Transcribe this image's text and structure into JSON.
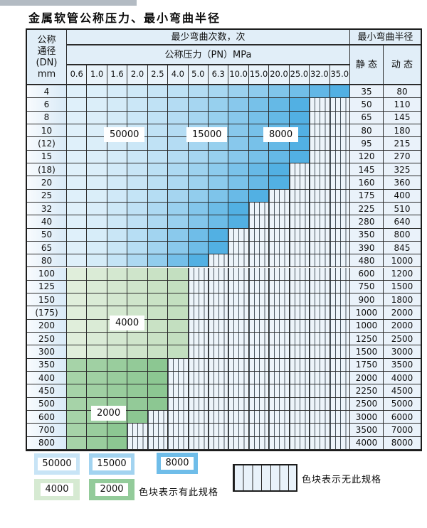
{
  "title": "金属软管公称压力、最小弯曲半径",
  "table": {
    "header": {
      "dn_lines": [
        "公称",
        "通径",
        "(DN)",
        "mm"
      ],
      "min_bend_cycles": "最少弯曲次数，次",
      "nominal_pressure": "公称压力（PN）MPa",
      "min_bend_radius": "最小弯曲半径",
      "static_label": "静 态",
      "dynamic_label": "动 态",
      "pressure_columns": [
        "0.6",
        "1.0",
        "1.6",
        "2.0",
        "2.5",
        "4.0",
        "5.0",
        "6.3",
        "10.0",
        "15.0",
        "20.0",
        "25.0",
        "32.0",
        "35.0"
      ]
    },
    "rows": [
      {
        "dn": "4",
        "colored_columns": 14,
        "zone": "blue",
        "static": "35",
        "dynamic": "80"
      },
      {
        "dn": "6",
        "colored_columns": 12,
        "zone": "blue",
        "static": "50",
        "dynamic": "110"
      },
      {
        "dn": "8",
        "colored_columns": 12,
        "zone": "blue",
        "static": "65",
        "dynamic": "145"
      },
      {
        "dn": "10",
        "colored_columns": 12,
        "zone": "blue",
        "static": "80",
        "dynamic": "180"
      },
      {
        "dn": "(12)",
        "colored_columns": 12,
        "zone": "blue",
        "static": "95",
        "dynamic": "215"
      },
      {
        "dn": "15",
        "colored_columns": 12,
        "zone": "blue",
        "static": "120",
        "dynamic": "270"
      },
      {
        "dn": "(18)",
        "colored_columns": 11,
        "zone": "blue",
        "static": "145",
        "dynamic": "325"
      },
      {
        "dn": "20",
        "colored_columns": 11,
        "zone": "blue",
        "static": "160",
        "dynamic": "360"
      },
      {
        "dn": "25",
        "colored_columns": 10,
        "zone": "blue",
        "static": "175",
        "dynamic": "400"
      },
      {
        "dn": "32",
        "colored_columns": 9,
        "zone": "blue",
        "static": "225",
        "dynamic": "510"
      },
      {
        "dn": "40",
        "colored_columns": 9,
        "zone": "blue",
        "static": "280",
        "dynamic": "640"
      },
      {
        "dn": "50",
        "colored_columns": 8,
        "zone": "blue",
        "static": "350",
        "dynamic": "800"
      },
      {
        "dn": "65",
        "colored_columns": 8,
        "zone": "blue",
        "static": "390",
        "dynamic": "845"
      },
      {
        "dn": "80",
        "colored_columns": 7,
        "zone": "blue",
        "static": "480",
        "dynamic": "1000"
      },
      {
        "dn": "100",
        "colored_columns": 6,
        "zone": "green_light",
        "static": "600",
        "dynamic": "1200"
      },
      {
        "dn": "125",
        "colored_columns": 6,
        "zone": "green_light",
        "static": "750",
        "dynamic": "1500"
      },
      {
        "dn": "150",
        "colored_columns": 6,
        "zone": "green_light",
        "static": "900",
        "dynamic": "1800"
      },
      {
        "dn": "(175)",
        "colored_columns": 6,
        "zone": "green_light",
        "static": "1000",
        "dynamic": "2000"
      },
      {
        "dn": "200",
        "colored_columns": 6,
        "zone": "green_light",
        "static": "1000",
        "dynamic": "2000"
      },
      {
        "dn": "250",
        "colored_columns": 6,
        "zone": "green_light",
        "static": "1250",
        "dynamic": "2500"
      },
      {
        "dn": "300",
        "colored_columns": 6,
        "zone": "green_light",
        "static": "1500",
        "dynamic": "3000"
      },
      {
        "dn": "350",
        "colored_columns": 5,
        "zone": "green_dark",
        "static": "1750",
        "dynamic": "3500"
      },
      {
        "dn": "400",
        "colored_columns": 5,
        "zone": "green_dark",
        "static": "2000",
        "dynamic": "4000"
      },
      {
        "dn": "450",
        "colored_columns": 5,
        "zone": "green_dark",
        "static": "2250",
        "dynamic": "4500"
      },
      {
        "dn": "500",
        "colored_columns": 5,
        "zone": "green_dark",
        "static": "2500",
        "dynamic": "5000"
      },
      {
        "dn": "600",
        "colored_columns": 4,
        "zone": "green_dark",
        "static": "3000",
        "dynamic": "6000"
      },
      {
        "dn": "700",
        "colored_columns": 3,
        "zone": "green_dark",
        "static": "3500",
        "dynamic": "7000"
      },
      {
        "dn": "800",
        "colored_columns": 3,
        "zone": "green_dark",
        "static": "4000",
        "dynamic": "8000"
      }
    ],
    "zone_labels": [
      "50000",
      "15000",
      "8000",
      "4000",
      "2000"
    ]
  },
  "legend": {
    "swatches": [
      {
        "label": "50000",
        "color": "#c8e4f6"
      },
      {
        "label": "15000",
        "color": "#a2d3f0"
      },
      {
        "label": "8000",
        "color": "#6fbde9"
      },
      {
        "label": "4000",
        "color": "#d6ead2"
      },
      {
        "label": "2000",
        "color": "#93cb9a"
      }
    ],
    "has_spec_text": "色块表示有此规格",
    "no_spec_text": "色块表示无此规格"
  },
  "colors": {
    "blue_start": "#dff0fa",
    "blue_end": "#52b0e3",
    "green_light_start": "#e0eedb",
    "green_light_end": "#c3dfc0",
    "green_dark_start": "#a6d3a8",
    "green_dark_end": "#8cc792",
    "grid": "#2b2b2b",
    "stripe_bg": "#edf4fa",
    "stripe_line": "#4a5660"
  }
}
